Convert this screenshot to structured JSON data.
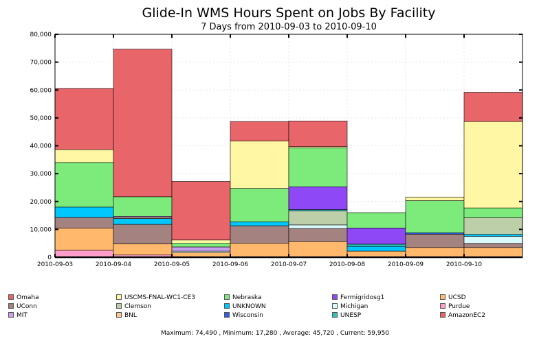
{
  "chart_data": {
    "type": "bar",
    "stacked": true,
    "title": "Glide-In WMS Hours Spent on Jobs By Facility",
    "subtitle": "7 Days from 2010-09-03 to 2010-09-10",
    "x_tick_labels": [
      "2010-09-03",
      "2010-09-04",
      "2010-09-05",
      "2010-09-06",
      "2010-09-07",
      "2010-09-08",
      "2010-09-09",
      "2010-09-10"
    ],
    "y_tick_labels": [
      "0",
      "10,000",
      "20,000",
      "30,000",
      "40,000",
      "50,000",
      "60,000",
      "70,000",
      "80,000"
    ],
    "ylim": [
      0,
      80000
    ],
    "grid": true,
    "legend_position": "bottom",
    "stack_order": [
      "Purdue",
      "UCSD",
      "UConn",
      "Michigan",
      "UNKNOWN",
      "BNL",
      "Clemson",
      "MIT",
      "UNESP",
      "Wisconsin",
      "Fermigridosg1",
      "Nebraska",
      "USCMS-FNAL-WC1-CE3",
      "Omaha",
      "AmazonEC2"
    ],
    "series": [
      {
        "name": "Omaha",
        "color": "#e8666a",
        "values": [
          22000,
          53000,
          21000,
          7000,
          9200,
          0,
          0,
          10500
        ]
      },
      {
        "name": "UConn",
        "color": "#a38280",
        "values": [
          3800,
          7000,
          0,
          6300,
          4700,
          0,
          4800,
          1500
        ]
      },
      {
        "name": "MIT",
        "color": "#c9a0f0",
        "values": [
          0,
          400,
          1500,
          0,
          0,
          0,
          0,
          0
        ]
      },
      {
        "name": "USCMS-FNAL-WC1-CE3",
        "color": "#fff7a3",
        "values": [
          4600,
          0,
          1200,
          17000,
          500,
          0,
          1300,
          31000
        ]
      },
      {
        "name": "Clemson",
        "color": "#bccfa8",
        "values": [
          0,
          0,
          0,
          0,
          5000,
          0,
          0,
          6000
        ]
      },
      {
        "name": "BNL",
        "color": "#ffc891",
        "values": [
          0,
          400,
          0,
          0,
          0,
          0,
          0,
          0
        ]
      },
      {
        "name": "Nebraska",
        "color": "#7ceb7c",
        "values": [
          16000,
          7000,
          1300,
          12000,
          13900,
          5500,
          11500,
          3500
        ]
      },
      {
        "name": "UNKNOWN",
        "color": "#00c8ff",
        "values": [
          3700,
          2100,
          0,
          1400,
          0,
          1700,
          0,
          700
        ]
      },
      {
        "name": "Wisconsin",
        "color": "#2e5ee8",
        "values": [
          0,
          0,
          0,
          0,
          0,
          0,
          500,
          0
        ]
      },
      {
        "name": "Fermigridosg1",
        "color": "#8e48f5",
        "values": [
          0,
          0,
          0,
          0,
          8200,
          5800,
          0,
          0
        ]
      },
      {
        "name": "Michigan",
        "color": "#d8fafa",
        "values": [
          0,
          0,
          500,
          0,
          1300,
          0,
          0,
          2500
        ]
      },
      {
        "name": "UNESP",
        "color": "#2ec4b4",
        "values": [
          0,
          0,
          0,
          0,
          500,
          800,
          0,
          0
        ]
      },
      {
        "name": "UCSD",
        "color": "#ffb86c",
        "values": [
          8000,
          4000,
          1700,
          5000,
          5600,
          2200,
          3500,
          3500
        ]
      },
      {
        "name": "Purdue",
        "color": "#ff9ecb",
        "values": [
          2500,
          800,
          0,
          0,
          0,
          0,
          0,
          0
        ]
      },
      {
        "name": "AmazonEC2",
        "color": "#e8666a",
        "values": [
          0,
          0,
          0,
          0,
          0,
          0,
          0,
          0
        ]
      }
    ],
    "legend": [
      {
        "name": "Omaha",
        "color": "#e8666a"
      },
      {
        "name": "USCMS-FNAL-WC1-CE3",
        "color": "#fff7a3"
      },
      {
        "name": "Nebraska",
        "color": "#7ceb7c"
      },
      {
        "name": "Fermigridosg1",
        "color": "#8e48f5"
      },
      {
        "name": "UCSD",
        "color": "#ffb86c"
      },
      {
        "name": "UConn",
        "color": "#a38280"
      },
      {
        "name": "Clemson",
        "color": "#bccfa8"
      },
      {
        "name": "UNKNOWN",
        "color": "#00c8ff"
      },
      {
        "name": "Michigan",
        "color": "#d8fafa"
      },
      {
        "name": "Purdue",
        "color": "#ff9ecb"
      },
      {
        "name": "MIT",
        "color": "#c9a0f0"
      },
      {
        "name": "BNL",
        "color": "#ffc891"
      },
      {
        "name": "Wisconsin",
        "color": "#2e5ee8"
      },
      {
        "name": "UNESP",
        "color": "#2ec4b4"
      },
      {
        "name": "AmazonEC2",
        "color": "#e8666a"
      }
    ],
    "stats_text": "Maximum: 74,490 , Minimum: 17,280 , Average: 45,720 , Current: 59,950"
  }
}
